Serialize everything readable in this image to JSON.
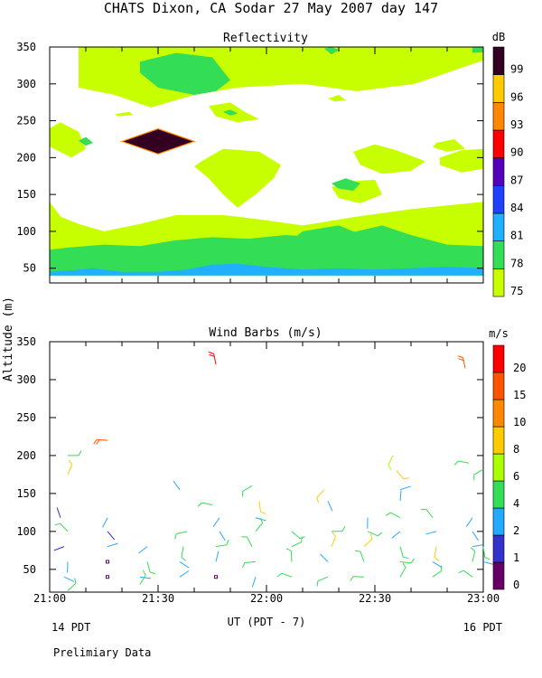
{
  "page": {
    "title": "CHATS Dixon, CA  Sodar  27 May 2007  day 147",
    "ylabel": "Altitude (m)",
    "xlabel": "UT  (PDT - 7)",
    "left_footer": "14 PDT",
    "right_footer": "16 PDT",
    "note": "Prelimiary Data"
  },
  "chart_data": [
    {
      "type": "heatmap",
      "title": "Reflectivity",
      "ylim": [
        30,
        350
      ],
      "y_ticks": [
        "50",
        "100",
        "150",
        "200",
        "250",
        "300",
        "350"
      ],
      "y_tick_values": [
        50,
        100,
        150,
        200,
        250,
        300,
        350
      ],
      "xlim": [
        "21:00",
        "23:00"
      ],
      "colorbar": {
        "unit": "dB",
        "levels": [
          75,
          78,
          81,
          84,
          87,
          90,
          93,
          96,
          99
        ],
        "labels": [
          "75",
          "78",
          "81",
          "84",
          "87",
          "90",
          "93",
          "96",
          "99"
        ],
        "colors": [
          "#c8ff00",
          "#33dd55",
          "#20b0ff",
          "#2040ff",
          "#5500bb",
          "#ff0000",
          "#ff8800",
          "#ffcc00",
          "#330022"
        ]
      },
      "regions": [
        {
          "level": 75,
          "time_min": [
            0,
            8,
            15,
            30,
            35,
            40,
            45,
            48,
            52,
            60,
            65,
            70,
            80,
            100,
            110,
            120,
            120,
            100,
            85,
            70,
            60,
            52,
            48,
            35,
            25,
            15,
            8,
            3,
            0
          ],
          "alt": [
            40,
            40,
            40,
            40,
            40,
            40,
            40,
            40,
            40,
            40,
            40,
            40,
            40,
            40,
            40,
            40,
            140,
            130,
            120,
            108,
            115,
            120,
            122,
            122,
            110,
            100,
            110,
            120,
            140
          ]
        },
        {
          "level": 75,
          "time_min": [
            8,
            22,
            28,
            38,
            55,
            70,
            84,
            94,
            98,
            105,
            110,
            120,
            120,
            110,
            101,
            85,
            70,
            52,
            40,
            28,
            18,
            8
          ],
          "alt": [
            350,
            350,
            350,
            350,
            350,
            350,
            350,
            350,
            350,
            350,
            350,
            350,
            332,
            315,
            300,
            290,
            300,
            295,
            285,
            268,
            285,
            295
          ]
        },
        {
          "level": 75,
          "time_min": [
            0,
            3,
            8,
            10,
            6,
            0
          ],
          "alt": [
            240,
            248,
            235,
            212,
            200,
            215
          ]
        },
        {
          "level": 75,
          "time_min": [
            44,
            50,
            54,
            58,
            52,
            46
          ],
          "alt": [
            270,
            275,
            262,
            252,
            248,
            256
          ]
        },
        {
          "level": 75,
          "time_min": [
            42,
            48,
            58,
            64,
            62,
            57,
            52,
            48,
            44,
            40
          ],
          "alt": [
            195,
            212,
            208,
            190,
            172,
            150,
            132,
            150,
            172,
            188
          ]
        },
        {
          "level": 75,
          "time_min": [
            84,
            90,
            96,
            104,
            100,
            92,
            86
          ],
          "alt": [
            208,
            218,
            210,
            195,
            182,
            178,
            190
          ]
        },
        {
          "level": 75,
          "time_min": [
            78,
            84,
            90,
            92,
            86,
            80
          ],
          "alt": [
            160,
            168,
            170,
            150,
            138,
            145
          ]
        },
        {
          "level": 75,
          "time_min": [
            108,
            114,
            120,
            120,
            114,
            108
          ],
          "alt": [
            200,
            210,
            212,
            185,
            180,
            190
          ]
        },
        {
          "level": 75,
          "time_min": [
            77,
            80,
            82,
            79
          ],
          "alt": [
            280,
            285,
            278,
            276
          ]
        },
        {
          "level": 75,
          "time_min": [
            18,
            22,
            23,
            19
          ],
          "alt": [
            259,
            262,
            258,
            256
          ]
        },
        {
          "level": 75,
          "time_min": [
            107,
            112,
            115,
            110,
            106
          ],
          "alt": [
            220,
            225,
            212,
            208,
            214
          ]
        },
        {
          "level": 78,
          "time_min": [
            0,
            15,
            30,
            45,
            60,
            70,
            80,
            90,
            100,
            110,
            120,
            120,
            110,
            100,
            92,
            85,
            75,
            65,
            55,
            45,
            35,
            25,
            15,
            5,
            0
          ],
          "alt": [
            40,
            40,
            40,
            40,
            40,
            40,
            40,
            40,
            40,
            40,
            40,
            80,
            82,
            95,
            108,
            100,
            92,
            95,
            90,
            92,
            88,
            80,
            82,
            78,
            75
          ]
        },
        {
          "level": 78,
          "time_min": [
            25,
            35,
            45,
            50,
            46,
            40,
            30,
            25
          ],
          "alt": [
            330,
            342,
            336,
            305,
            290,
            285,
            295,
            315
          ]
        },
        {
          "level": 78,
          "time_min": [
            70,
            80,
            86,
            82,
            75,
            68
          ],
          "alt": [
            100,
            108,
            96,
            90,
            87,
            92
          ]
        },
        {
          "level": 78,
          "time_min": [
            78,
            82,
            86,
            84,
            80
          ],
          "alt": [
            165,
            172,
            165,
            155,
            158
          ]
        },
        {
          "level": 78,
          "time_min": [
            8,
            10,
            12,
            10
          ],
          "alt": [
            223,
            228,
            220,
            216
          ]
        },
        {
          "level": 78,
          "time_min": [
            48,
            50,
            52,
            50
          ],
          "alt": [
            262,
            265,
            260,
            257
          ]
        },
        {
          "level": 78,
          "time_min": [
            76,
            78,
            80,
            78
          ],
          "alt": [
            348,
            350,
            346,
            340
          ]
        },
        {
          "level": 78,
          "time_min": [
            117,
            120,
            120,
            117
          ],
          "alt": [
            350,
            350,
            343,
            342
          ]
        },
        {
          "level": 81,
          "time_min": [
            0,
            15,
            20,
            30,
            40,
            45,
            50,
            60,
            70,
            80,
            90,
            100,
            110,
            120,
            120,
            110,
            100,
            90,
            80,
            70,
            60,
            52,
            45,
            38,
            30,
            20,
            12,
            6,
            0
          ],
          "alt": [
            40,
            40,
            40,
            40,
            40,
            40,
            40,
            40,
            40,
            40,
            40,
            40,
            40,
            40,
            50,
            52,
            50,
            48,
            50,
            48,
            52,
            56,
            55,
            48,
            45,
            45,
            50,
            47,
            45
          ]
        },
        {
          "level": 99,
          "time_min": [
            20,
            30,
            40,
            30
          ],
          "alt": [
            222,
            239,
            222,
            205
          ]
        }
      ]
    },
    {
      "type": "scatter",
      "title": "Wind Barbs (m/s)",
      "ylim": [
        20,
        350
      ],
      "y_ticks": [
        "50",
        "100",
        "150",
        "200",
        "250",
        "300",
        "350"
      ],
      "y_tick_values": [
        50,
        100,
        150,
        200,
        250,
        300,
        350
      ],
      "x_ticks": [
        "21:00",
        "21:30",
        "22:00",
        "22:30",
        "23:00"
      ],
      "x_tick_values": [
        0,
        30,
        60,
        90,
        120
      ],
      "colorbar": {
        "unit": "m/s",
        "levels": [
          0,
          1,
          2,
          4,
          6,
          8,
          10,
          15,
          20
        ],
        "labels": [
          "0",
          "1",
          "2",
          "4",
          "6",
          "8",
          "10",
          "15",
          "20"
        ],
        "colors": [
          "#660066",
          "#3333cc",
          "#22aaff",
          "#33dd55",
          "#aaff00",
          "#ffcc00",
          "#ff8800",
          "#ff5500",
          "#ff0000"
        ]
      },
      "barbs": [
        {
          "t": 5,
          "alt": 200,
          "speed": 5
        },
        {
          "t": 5,
          "alt": 175,
          "speed": 8
        },
        {
          "t": 5,
          "alt": 100,
          "speed": 4
        },
        {
          "t": 4,
          "alt": 80,
          "speed": 1
        },
        {
          "t": 5,
          "alt": 60,
          "speed": 3
        },
        {
          "t": 4,
          "alt": 40,
          "speed": 3
        },
        {
          "t": 5,
          "alt": 22,
          "speed": 4
        },
        {
          "t": 3,
          "alt": 118,
          "speed": 1
        },
        {
          "t": 16,
          "alt": 220,
          "speed": 15
        },
        {
          "t": 16,
          "alt": 118,
          "speed": 3
        },
        {
          "t": 16,
          "alt": 100,
          "speed": 1
        },
        {
          "t": 16,
          "alt": 80,
          "speed": 3
        },
        {
          "t": 16,
          "alt": 60,
          "speed": 0
        },
        {
          "t": 16,
          "alt": 40,
          "speed": 0
        },
        {
          "t": 27,
          "alt": 80,
          "speed": 3
        },
        {
          "t": 27,
          "alt": 60,
          "speed": 4
        },
        {
          "t": 25,
          "alt": 40,
          "speed": 3
        },
        {
          "t": 25,
          "alt": 30,
          "speed": 4
        },
        {
          "t": 36,
          "alt": 155,
          "speed": 3
        },
        {
          "t": 38,
          "alt": 100,
          "speed": 4
        },
        {
          "t": 37,
          "alt": 80,
          "speed": 4
        },
        {
          "t": 36,
          "alt": 60,
          "speed": 3
        },
        {
          "t": 36,
          "alt": 40,
          "speed": 3
        },
        {
          "t": 46,
          "alt": 320,
          "speed": 20
        },
        {
          "t": 45,
          "alt": 135,
          "speed": 5
        },
        {
          "t": 47,
          "alt": 118,
          "speed": 3
        },
        {
          "t": 47,
          "alt": 100,
          "speed": 3
        },
        {
          "t": 46,
          "alt": 80,
          "speed": 4
        },
        {
          "t": 46,
          "alt": 60,
          "speed": 3
        },
        {
          "t": 46,
          "alt": 40,
          "speed": 0
        },
        {
          "t": 56,
          "alt": 160,
          "speed": 4
        },
        {
          "t": 58,
          "alt": 140,
          "speed": 8
        },
        {
          "t": 57,
          "alt": 118,
          "speed": 3
        },
        {
          "t": 57,
          "alt": 100,
          "speed": 4
        },
        {
          "t": 56,
          "alt": 80,
          "speed": 4
        },
        {
          "t": 57,
          "alt": 60,
          "speed": 4
        },
        {
          "t": 57,
          "alt": 40,
          "speed": 3
        },
        {
          "t": 67,
          "alt": 100,
          "speed": 4
        },
        {
          "t": 67,
          "alt": 80,
          "speed": 4
        },
        {
          "t": 67,
          "alt": 60,
          "speed": 4
        },
        {
          "t": 67,
          "alt": 40,
          "speed": 4
        },
        {
          "t": 76,
          "alt": 155,
          "speed": 8
        },
        {
          "t": 77,
          "alt": 140,
          "speed": 3
        },
        {
          "t": 78,
          "alt": 100,
          "speed": 4
        },
        {
          "t": 78,
          "alt": 80,
          "speed": 8
        },
        {
          "t": 77,
          "alt": 60,
          "speed": 3
        },
        {
          "t": 77,
          "alt": 40,
          "speed": 4
        },
        {
          "t": 88,
          "alt": 118,
          "speed": 3
        },
        {
          "t": 88,
          "alt": 100,
          "speed": 4
        },
        {
          "t": 87,
          "alt": 80,
          "speed": 8
        },
        {
          "t": 87,
          "alt": 60,
          "speed": 4
        },
        {
          "t": 87,
          "alt": 40,
          "speed": 4
        },
        {
          "t": 95,
          "alt": 200,
          "speed": 6
        },
        {
          "t": 96,
          "alt": 180,
          "speed": 8
        },
        {
          "t": 97,
          "alt": 155,
          "speed": 3
        },
        {
          "t": 97,
          "alt": 140,
          "speed": 3
        },
        {
          "t": 97,
          "alt": 118,
          "speed": 4
        },
        {
          "t": 97,
          "alt": 100,
          "speed": 3
        },
        {
          "t": 97,
          "alt": 80,
          "speed": 4
        },
        {
          "t": 97,
          "alt": 60,
          "speed": 4
        },
        {
          "t": 97,
          "alt": 40,
          "speed": 4
        },
        {
          "t": 106,
          "alt": 118,
          "speed": 5
        },
        {
          "t": 107,
          "alt": 100,
          "speed": 3
        },
        {
          "t": 107,
          "alt": 80,
          "speed": 8
        },
        {
          "t": 106,
          "alt": 60,
          "speed": 3
        },
        {
          "t": 106,
          "alt": 40,
          "speed": 4
        },
        {
          "t": 115,
          "alt": 315,
          "speed": 15
        },
        {
          "t": 116,
          "alt": 190,
          "speed": 5
        },
        {
          "t": 117,
          "alt": 118,
          "speed": 3
        },
        {
          "t": 117,
          "alt": 100,
          "speed": 3
        },
        {
          "t": 117,
          "alt": 80,
          "speed": 3
        },
        {
          "t": 117,
          "alt": 60,
          "speed": 4
        },
        {
          "t": 117,
          "alt": 40,
          "speed": 4
        },
        {
          "t": 120,
          "alt": 182,
          "speed": 5
        },
        {
          "t": 120,
          "alt": 80,
          "speed": 4
        },
        {
          "t": 120,
          "alt": 60,
          "speed": 3
        }
      ]
    }
  ]
}
